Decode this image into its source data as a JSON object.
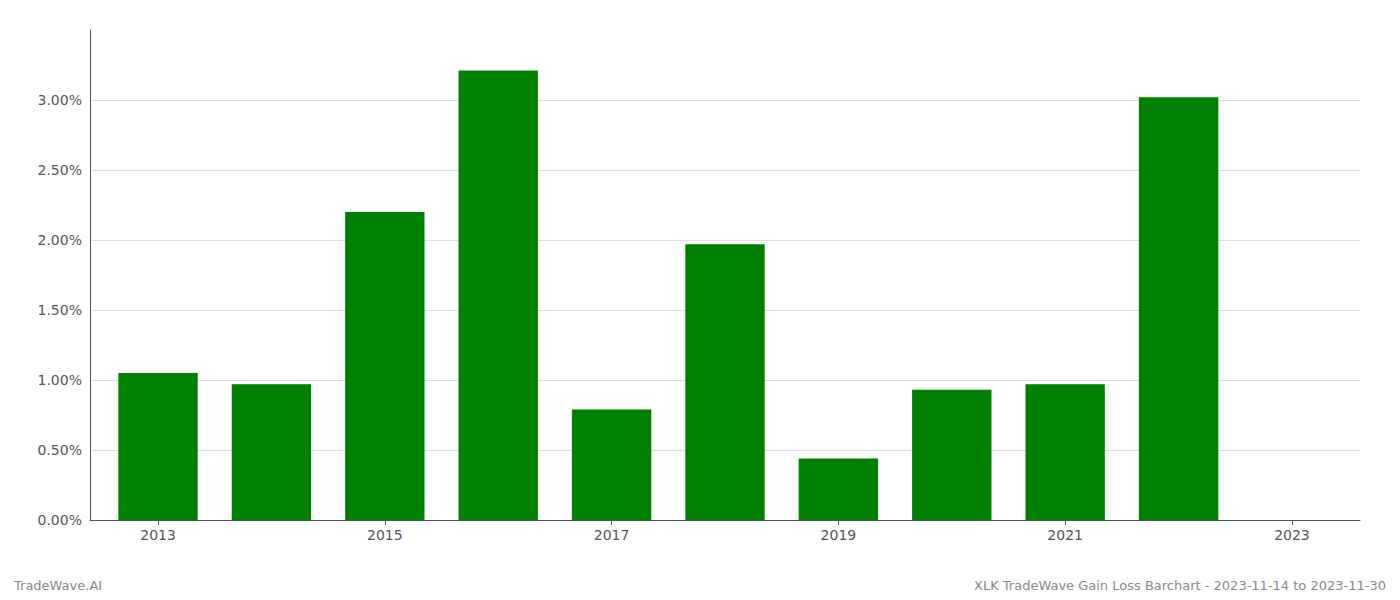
{
  "chart_data": {
    "type": "bar",
    "x": [
      2013,
      2014,
      2015,
      2016,
      2017,
      2018,
      2019,
      2020,
      2021,
      2022
    ],
    "values": [
      1.05,
      0.97,
      2.2,
      3.21,
      0.79,
      1.97,
      0.44,
      0.93,
      0.97,
      3.02
    ],
    "color": "#008000",
    "xlim": [
      2012.4,
      2023.6
    ],
    "xticks": [
      2013,
      2015,
      2017,
      2019,
      2021,
      2023
    ],
    "ylim": [
      0.0,
      3.5
    ],
    "yticks": [
      {
        "value": 0.0,
        "label": "0.00%"
      },
      {
        "value": 0.5,
        "label": "0.50%"
      },
      {
        "value": 1.0,
        "label": "1.00%"
      },
      {
        "value": 1.5,
        "label": "1.50%"
      },
      {
        "value": 2.0,
        "label": "2.00%"
      },
      {
        "value": 2.5,
        "label": "2.50%"
      },
      {
        "value": 3.0,
        "label": "3.00%"
      }
    ],
    "grid": true,
    "annotations": [
      "TradeWave.AI",
      "XLK TradeWave Gain Loss Barchart - 2023-11-14 to 2023-11-30"
    ]
  }
}
